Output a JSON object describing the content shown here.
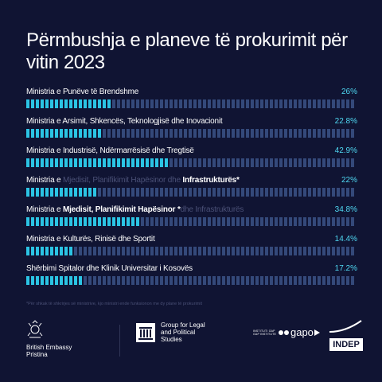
{
  "title": "Përmbushja e planeve të prokurimit për vitin 2023",
  "chart_data": {
    "type": "bar",
    "orientation": "horizontal",
    "unit": "%",
    "xlim": [
      0,
      100
    ],
    "categories": [
      "Ministria e Punëve të Brendshme",
      "Ministria e Arsimit, Shkencës, Teknologjisë dhe Inovacionit",
      "Ministria e Industrisë, Ndërmarrësisë dhe Tregtisë",
      "Ministria e Mjedisit, Planifikimit Hapësinor dhe Infrastrukturës*",
      "Ministria e Mjedisit, Planifikimit Hapësinor *dhe Infrastrukturës",
      "Ministria e Kulturës, Rinisë dhe Sportit",
      "Shërbimi Spitalor dhe Klinik Universitar i Kosovës"
    ],
    "values": [
      26,
      22.8,
      42.9,
      22,
      34.8,
      14.4,
      17.2
    ],
    "value_labels": [
      "26%",
      "22.8%",
      "42.9%",
      "22%",
      "34.8%",
      "14.4%",
      "17.2%"
    ],
    "bar_style": "segmented",
    "colors": {
      "filled": "#2bc4e4",
      "empty": "#34497a",
      "value_text": "#4fd8f2",
      "background": "#101433",
      "dim_text": "#4a5076"
    }
  },
  "split_labels": [
    null,
    null,
    null,
    {
      "prefix": "Ministria e ",
      "dim": "Mjedisit, Planifikimit Hapësinor dhe ",
      "bold": "Infrastrukturës*"
    },
    {
      "prefix": "Ministria e ",
      "bold": "Mjedisit, Planifikimit Hapësinor *",
      "dim": "dhe Infrastrukturës"
    },
    null,
    null
  ],
  "footnote": "*Për shkak të shkrirjes së ministrive, kjo ministri ende funksionon me dy plane të prokurimit",
  "logos": {
    "british_embassy": "British Embassy\nPristina",
    "group_legal": "Group for Legal\nand Political\nStudies",
    "gap_small": "INSTITUTI GAP\nGAP INSTITUTE",
    "gap_word": "gapo",
    "indep": "INDEP"
  }
}
